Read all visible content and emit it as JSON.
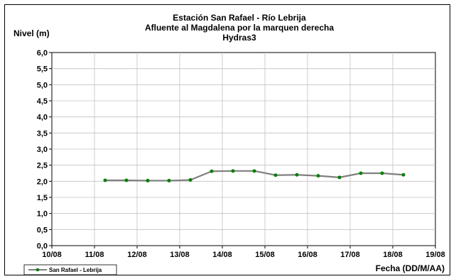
{
  "chart_data": {
    "type": "line",
    "title_lines": [
      "Estación San Rafael - Río Lebrija",
      "Afluente al Magdalena por la marquen derecha",
      "Hydras3"
    ],
    "ylabel": "Nivel (m)",
    "xlabel": "Fecha (DD/M/AA)",
    "ylim": [
      0,
      6
    ],
    "yticks": [
      "0,0",
      "0,5",
      "1,0",
      "1,5",
      "2,0",
      "2,5",
      "3,0",
      "3,5",
      "4,0",
      "4,5",
      "5,0",
      "5,5",
      "6,0"
    ],
    "xlim": [
      0,
      9
    ],
    "xticks": [
      "10/08",
      "11/08",
      "12/08",
      "13/08",
      "14/08",
      "15/08",
      "16/08",
      "17/08",
      "18/08",
      "19/08"
    ],
    "grid": true,
    "legend": "bottom-left",
    "series": [
      {
        "name": "San Rafael - Lebrija",
        "line_color": "#808080",
        "marker_color": "#008000",
        "points": [
          {
            "x": 1.25,
            "y": 2.03
          },
          {
            "x": 1.75,
            "y": 2.03
          },
          {
            "x": 2.25,
            "y": 2.02
          },
          {
            "x": 2.75,
            "y": 2.02
          },
          {
            "x": 3.25,
            "y": 2.04
          },
          {
            "x": 3.75,
            "y": 2.31
          },
          {
            "x": 4.25,
            "y": 2.32
          },
          {
            "x": 4.75,
            "y": 2.32
          },
          {
            "x": 5.25,
            "y": 2.19
          },
          {
            "x": 5.75,
            "y": 2.2
          },
          {
            "x": 6.25,
            "y": 2.17
          },
          {
            "x": 6.75,
            "y": 2.12
          },
          {
            "x": 7.25,
            "y": 2.25
          },
          {
            "x": 7.75,
            "y": 2.25
          },
          {
            "x": 8.25,
            "y": 2.2
          }
        ]
      }
    ]
  }
}
